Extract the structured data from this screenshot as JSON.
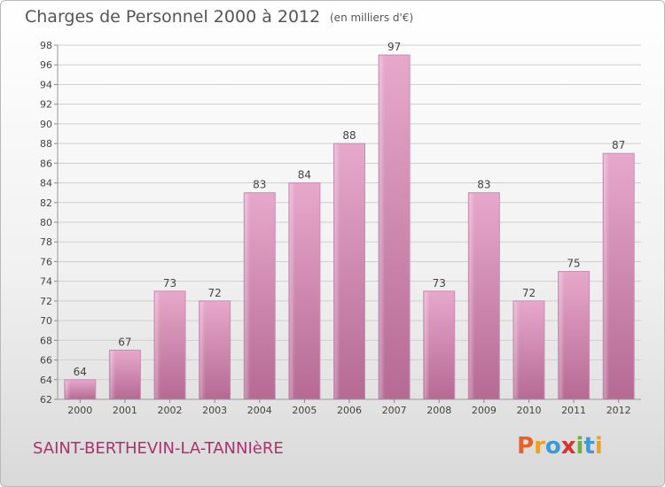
{
  "header": {
    "title": "Charges de Personnel 2000 à 2012",
    "subtitle": "(en milliers d'€)"
  },
  "footer": {
    "commune": "SAINT-BERTHEVIN-LA-TANNIèRE",
    "logo": "Proxiti"
  },
  "logo_letters": [
    {
      "ch": "P",
      "color": "#e5632a"
    },
    {
      "ch": "r",
      "color": "#f0a020"
    },
    {
      "ch": "o",
      "color": "#3b9bd6"
    },
    {
      "ch": "x",
      "color": "#d8322f"
    },
    {
      "ch": "i",
      "color": "#6cb33e"
    },
    {
      "ch": "t",
      "color": "#3b9bd6"
    },
    {
      "ch": "i",
      "color": "#f0a020"
    }
  ],
  "chart_data": {
    "type": "bar",
    "title": "Charges de Personnel 2000 à 2012",
    "subtitle": "(en milliers d'€)",
    "categories": [
      "2000",
      "2001",
      "2002",
      "2003",
      "2004",
      "2005",
      "2006",
      "2007",
      "2008",
      "2009",
      "2010",
      "2011",
      "2012"
    ],
    "values": [
      64,
      67,
      73,
      72,
      83,
      84,
      88,
      97,
      73,
      83,
      72,
      75,
      87
    ],
    "ylim": [
      62,
      98
    ],
    "yticks": [
      62,
      64,
      66,
      68,
      70,
      72,
      74,
      76,
      78,
      80,
      82,
      84,
      86,
      88,
      90,
      92,
      94,
      96,
      98
    ],
    "grid": true,
    "bar_color": "#d07aa6",
    "grid_color": "#cfcfcf"
  }
}
